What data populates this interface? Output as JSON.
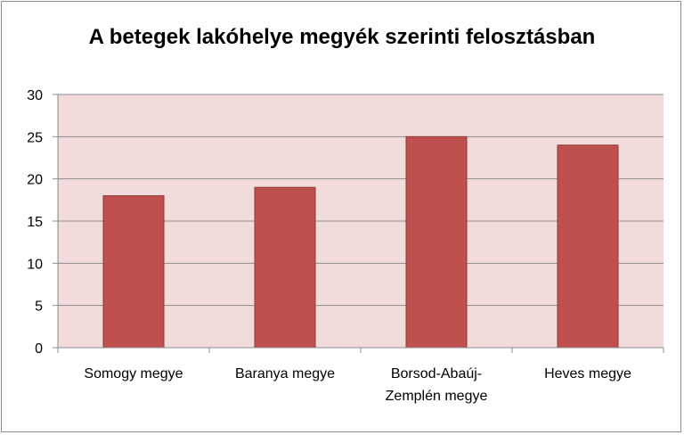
{
  "chart_data": {
    "type": "bar",
    "title": "A betegek lakóhelye megyék szerinti felosztásban",
    "categories": [
      [
        "Somogy megye"
      ],
      [
        "Baranya megye"
      ],
      [
        "Borsod-Abaúj-",
        "Zemplén megye"
      ],
      [
        "Heves megye"
      ]
    ],
    "values": [
      18,
      19,
      25,
      24
    ],
    "ylim": [
      0,
      30
    ],
    "yticks": [
      0,
      5,
      10,
      15,
      20,
      25,
      30
    ],
    "xlabel": "",
    "ylabel": "",
    "grid": true,
    "legend": "none",
    "colors": {
      "bar": "#c0504d",
      "bar_border": "#8c3836",
      "plot_background": "#f2dcdb",
      "gridline": "#8c8c8c",
      "axis": "#8c8c8c"
    }
  }
}
